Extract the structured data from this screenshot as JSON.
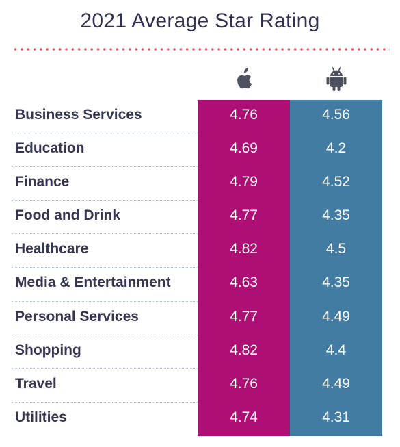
{
  "title": "2021 Average Star Rating",
  "icons": {
    "ios": "apple-logo",
    "android": "android-robot"
  },
  "colors": {
    "title_text": "#2f3150",
    "rule_dots": "#e2535b",
    "ios_column": "#ae0f74",
    "android_column": "#427ca3",
    "icon": "#4d5160",
    "category_text": "#353752"
  },
  "chart_data": {
    "type": "table",
    "title": "2021 Average Star Rating",
    "columns": [
      "ios",
      "android"
    ],
    "rows": [
      {
        "category": "Business Services",
        "ios": "4.76",
        "android": "4.56"
      },
      {
        "category": "Education",
        "ios": "4.69",
        "android": "4.2"
      },
      {
        "category": "Finance",
        "ios": "4.79",
        "android": "4.52"
      },
      {
        "category": "Food and Drink",
        "ios": "4.77",
        "android": "4.35"
      },
      {
        "category": "Healthcare",
        "ios": "4.82",
        "android": "4.5"
      },
      {
        "category": "Media & Entertainment",
        "ios": "4.63",
        "android": "4.35"
      },
      {
        "category": "Personal Services",
        "ios": "4.77",
        "android": "4.49"
      },
      {
        "category": "Shopping",
        "ios": "4.82",
        "android": "4.4"
      },
      {
        "category": "Travel",
        "ios": "4.76",
        "android": "4.49"
      },
      {
        "category": "Utilities",
        "ios": "4.74",
        "android": "4.31"
      }
    ]
  }
}
